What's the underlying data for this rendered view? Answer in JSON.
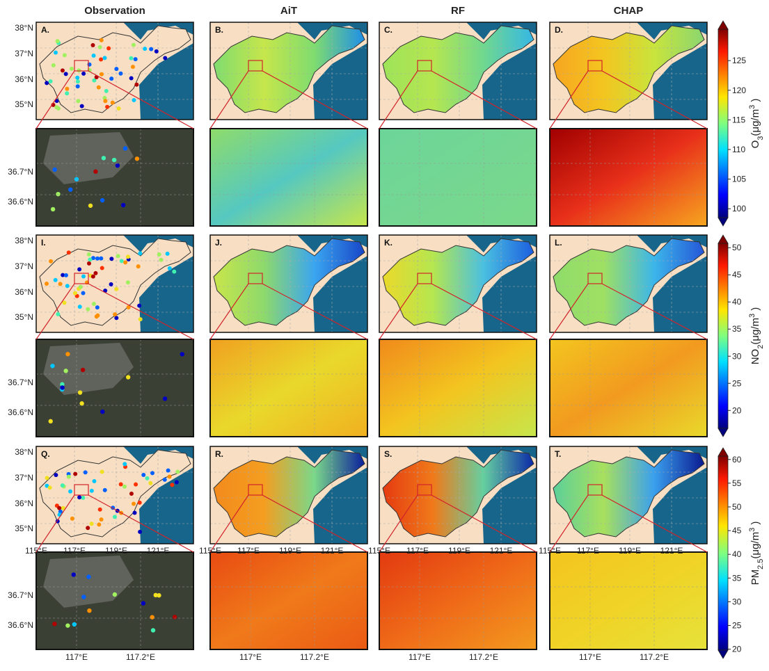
{
  "column_titles": [
    "Observation",
    "AiT",
    "RF",
    "CHAP"
  ],
  "rows": [
    {
      "letters": [
        "A.",
        "B.",
        "C.",
        "D."
      ],
      "colorbar": {
        "name": "O",
        "name_sub": "3",
        "unit": "(μg/m",
        "unit_sup": "3",
        "unit_end": " )",
        "lim": [
          98.5,
          130.3
        ],
        "ticks": [
          100,
          105,
          110,
          115,
          120,
          125
        ]
      }
    },
    {
      "letters": [
        "I.",
        "J.",
        "K.",
        "L."
      ],
      "colorbar": {
        "name": "NO",
        "name_sub": "2",
        "unit": "(μg/m",
        "unit_sup": "3",
        "unit_end": " )",
        "lim": [
          16.7,
          50.8
        ],
        "ticks": [
          20,
          25,
          30,
          35,
          40,
          45,
          50
        ]
      }
    },
    {
      "letters": [
        "Q.",
        "R.",
        "S.",
        "T."
      ],
      "colorbar": {
        "name": "PM",
        "name_sub": "2.5",
        "unit": "(μg/m",
        "unit_sup": "3",
        "unit_end": " )",
        "lim": [
          19.8,
          60.7
        ],
        "ticks": [
          20,
          25,
          30,
          35,
          40,
          45,
          50,
          55,
          60
        ]
      }
    }
  ],
  "map_lat_ticks": [
    "38°N",
    "37°N",
    "36°N",
    "35°N"
  ],
  "map_lon_ticks": [
    "115°E",
    "117°E",
    "119°E",
    "121°E"
  ],
  "zoom_lat_ticks": [
    "36.7°N",
    "36.6°N"
  ],
  "zoom_lon_ticks": [
    "117°E",
    "117.2°E"
  ]
}
